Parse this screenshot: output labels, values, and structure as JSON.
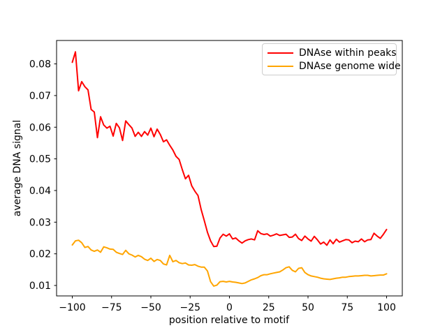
{
  "figure": {
    "background_color": "#ffffff",
    "axes_frame_color": "#000000",
    "text_color": "#000000"
  },
  "chart_data": {
    "type": "line",
    "title": "",
    "xlabel": "position relative to motif",
    "ylabel": "average DNA signal",
    "xlim": [
      -110,
      110
    ],
    "ylim": [
      0.0067,
      0.0874
    ],
    "grid": false,
    "legend_position": "upper right",
    "x_ticks": [
      {
        "value": -100,
        "label": "−100"
      },
      {
        "value": -75,
        "label": "−75"
      },
      {
        "value": -50,
        "label": "−50"
      },
      {
        "value": -25,
        "label": "−25"
      },
      {
        "value": 0,
        "label": "0"
      },
      {
        "value": 25,
        "label": "25"
      },
      {
        "value": 50,
        "label": "50"
      },
      {
        "value": 75,
        "label": "75"
      },
      {
        "value": 100,
        "label": "100"
      }
    ],
    "y_ticks": [
      {
        "value": 0.01,
        "label": "0.01"
      },
      {
        "value": 0.02,
        "label": "0.02"
      },
      {
        "value": 0.03,
        "label": "0.03"
      },
      {
        "value": 0.04,
        "label": "0.04"
      },
      {
        "value": 0.05,
        "label": "0.05"
      },
      {
        "value": 0.06,
        "label": "0.06"
      },
      {
        "value": 0.07,
        "label": "0.07"
      },
      {
        "value": 0.08,
        "label": "0.08"
      }
    ],
    "x": [
      -100,
      -98,
      -96,
      -94,
      -92,
      -90,
      -88,
      -86,
      -84,
      -82,
      -80,
      -78,
      -76,
      -74,
      -72,
      -70,
      -68,
      -66,
      -64,
      -62,
      -60,
      -58,
      -56,
      -54,
      -52,
      -50,
      -48,
      -46,
      -44,
      -42,
      -40,
      -38,
      -36,
      -34,
      -32,
      -30,
      -28,
      -26,
      -24,
      -22,
      -20,
      -18,
      -16,
      -14,
      -12,
      -10,
      -8,
      -6,
      -4,
      -2,
      0,
      2,
      4,
      6,
      8,
      10,
      12,
      14,
      16,
      18,
      20,
      22,
      24,
      26,
      28,
      30,
      32,
      34,
      36,
      38,
      40,
      42,
      44,
      46,
      48,
      50,
      52,
      54,
      56,
      58,
      60,
      62,
      64,
      66,
      68,
      70,
      72,
      74,
      76,
      78,
      80,
      82,
      84,
      86,
      88,
      90,
      92,
      94,
      96,
      98,
      100
    ],
    "series": [
      {
        "id": "dnase-within-peaks",
        "name": "DNAse within peaks",
        "color": "#ff0000",
        "line_width": 2,
        "values": [
          0.0805,
          0.0838,
          0.0715,
          0.0744,
          0.0728,
          0.0718,
          0.0656,
          0.0648,
          0.0567,
          0.0633,
          0.0607,
          0.0597,
          0.0603,
          0.0572,
          0.0612,
          0.0598,
          0.0558,
          0.062,
          0.0608,
          0.0597,
          0.0571,
          0.0584,
          0.0571,
          0.0586,
          0.0575,
          0.0597,
          0.057,
          0.0594,
          0.0577,
          0.0554,
          0.056,
          0.0543,
          0.0528,
          0.0508,
          0.0498,
          0.0466,
          0.0437,
          0.0448,
          0.0415,
          0.0398,
          0.0384,
          0.034,
          0.0305,
          0.0268,
          0.0241,
          0.0223,
          0.0224,
          0.025,
          0.0262,
          0.0256,
          0.0263,
          0.0247,
          0.025,
          0.0241,
          0.0234,
          0.0241,
          0.0245,
          0.0247,
          0.0244,
          0.0273,
          0.0264,
          0.0261,
          0.0263,
          0.0256,
          0.0259,
          0.0263,
          0.0258,
          0.026,
          0.0262,
          0.0252,
          0.0253,
          0.0262,
          0.0248,
          0.0242,
          0.0256,
          0.0247,
          0.024,
          0.0255,
          0.0244,
          0.0231,
          0.0237,
          0.0227,
          0.0244,
          0.0232,
          0.0246,
          0.0237,
          0.0241,
          0.0245,
          0.0244,
          0.0235,
          0.024,
          0.0238,
          0.0247,
          0.0238,
          0.0244,
          0.0245,
          0.0265,
          0.0256,
          0.0249,
          0.0262,
          0.0277
        ]
      },
      {
        "id": "dnase-genome-wide",
        "name": "DNAse genome wide",
        "color": "#ffa500",
        "line_width": 2,
        "values": [
          0.0228,
          0.0241,
          0.0243,
          0.0235,
          0.022,
          0.0223,
          0.0212,
          0.0208,
          0.0212,
          0.0205,
          0.0222,
          0.0219,
          0.0215,
          0.0214,
          0.0205,
          0.0201,
          0.0198,
          0.0211,
          0.02,
          0.0196,
          0.019,
          0.0195,
          0.0191,
          0.0183,
          0.0179,
          0.0186,
          0.0176,
          0.0182,
          0.0179,
          0.0168,
          0.0165,
          0.0195,
          0.0175,
          0.0179,
          0.0172,
          0.0169,
          0.0171,
          0.0165,
          0.0164,
          0.0166,
          0.0161,
          0.0158,
          0.0158,
          0.0146,
          0.0112,
          0.0098,
          0.0101,
          0.0112,
          0.0113,
          0.0111,
          0.0113,
          0.0111,
          0.011,
          0.0108,
          0.0106,
          0.0108,
          0.0113,
          0.0118,
          0.0121,
          0.0125,
          0.0131,
          0.0134,
          0.0134,
          0.0137,
          0.0139,
          0.0141,
          0.0143,
          0.0149,
          0.0156,
          0.0159,
          0.0148,
          0.0143,
          0.0154,
          0.0156,
          0.0141,
          0.0134,
          0.013,
          0.0128,
          0.0126,
          0.0123,
          0.0121,
          0.012,
          0.0119,
          0.0121,
          0.0123,
          0.0124,
          0.0126,
          0.0126,
          0.0128,
          0.0129,
          0.013,
          0.013,
          0.0131,
          0.0132,
          0.0132,
          0.013,
          0.0131,
          0.0132,
          0.0133,
          0.0133,
          0.0137
        ]
      }
    ]
  }
}
